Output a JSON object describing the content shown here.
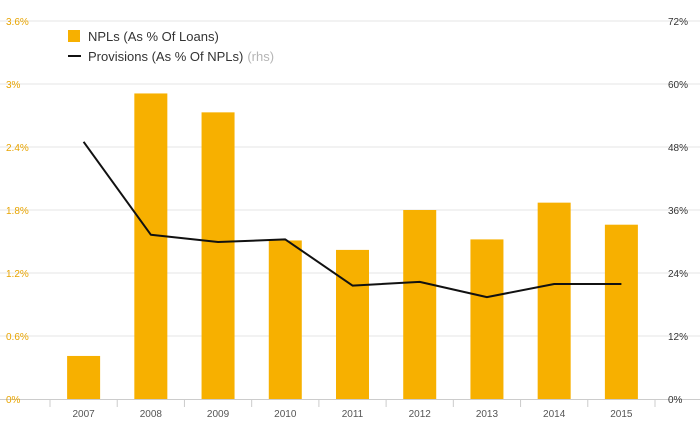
{
  "colors": {
    "bar": "#f7b000",
    "line": "#111111",
    "left_tick": "#e8a400",
    "right_tick": "#333333",
    "grid": "#e6e6e6",
    "axis": "#cccccc",
    "x_tick": "#555555",
    "legend_text": "#333333",
    "legend_suffix": "#b5b5b5"
  },
  "legend": {
    "bar_label": "NPLs (As % Of Loans)",
    "line_label": "Provisions (As % Of NPLs)",
    "line_suffix": "(rhs)"
  },
  "chart_data": {
    "type": "bar",
    "title": "",
    "xlabel": "",
    "ylabel": "",
    "categories": [
      "2007",
      "2008",
      "2009",
      "2010",
      "2011",
      "2012",
      "2013",
      "2014",
      "2015"
    ],
    "grid": true,
    "legend_position": "top-left",
    "left_axis": {
      "ylim": [
        0,
        3.6
      ],
      "ticks": [
        0,
        0.6,
        1.2,
        1.8,
        2.4,
        3.0,
        3.6
      ],
      "tick_labels": [
        "0%",
        "0.6%",
        "1.2%",
        "1.8%",
        "2.4%",
        "3%",
        "3.6%"
      ]
    },
    "right_axis": {
      "ylim": [
        0,
        72
      ],
      "ticks": [
        0,
        12,
        24,
        36,
        48,
        60,
        72
      ],
      "tick_labels": [
        "0%",
        "12%",
        "24%",
        "36%",
        "48%",
        "60%",
        "72%"
      ]
    },
    "series": [
      {
        "name": "NPLs (As % Of Loans)",
        "type": "bar",
        "axis": "left",
        "values": [
          0.41,
          2.91,
          2.73,
          1.51,
          1.42,
          1.8,
          1.52,
          1.87,
          1.66
        ]
      },
      {
        "name": "Provisions (As % Of NPLs)",
        "type": "line",
        "axis": "right",
        "values": [
          49,
          31.3,
          29.9,
          30.4,
          21.6,
          22.3,
          19.4,
          21.9,
          21.9
        ]
      }
    ]
  }
}
